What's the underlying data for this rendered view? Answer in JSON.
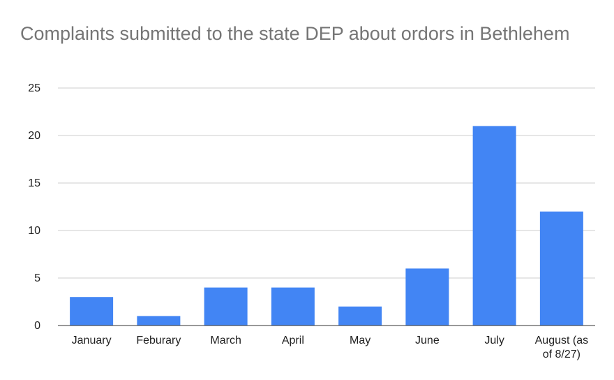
{
  "chart_data": {
    "type": "bar",
    "title": "Complaints submitted to the state DEP about ordors in Bethlehem",
    "categories": [
      "January",
      "Feburary",
      "March",
      "April",
      "May",
      "June",
      "July",
      "August (as of 8/27)"
    ],
    "category_label_lines": [
      [
        "January"
      ],
      [
        "Feburary"
      ],
      [
        "March"
      ],
      [
        "April"
      ],
      [
        "May"
      ],
      [
        "June"
      ],
      [
        "July"
      ],
      [
        "August (as",
        "of 8/27)"
      ]
    ],
    "values": [
      3,
      1,
      4,
      4,
      2,
      6,
      21,
      12
    ],
    "ylim": [
      0,
      25
    ],
    "yticks": [
      0,
      5,
      10,
      15,
      20,
      25
    ],
    "xlabel": "",
    "ylabel": "",
    "grid": true,
    "legend": "none",
    "bar_color": "#4285f4"
  }
}
